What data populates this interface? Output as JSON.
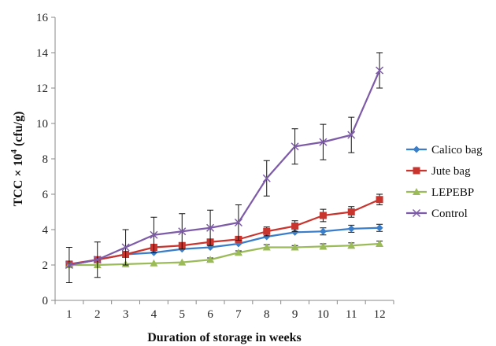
{
  "chart_data": {
    "type": "line",
    "title": "",
    "xlabel": "Duration of storage in weeks",
    "ylabel_main": "TCC × 10",
    "ylabel_exp": "4",
    "ylabel_unit": " (cfu/g)",
    "x": [
      1,
      2,
      3,
      4,
      5,
      6,
      7,
      8,
      9,
      10,
      11,
      12
    ],
    "xlim": [
      0.5,
      12.5
    ],
    "ylim": [
      0,
      16
    ],
    "yticks": [
      0,
      2,
      4,
      6,
      8,
      10,
      12,
      14,
      16
    ],
    "grid": false,
    "legend": "right",
    "series": [
      {
        "name": "Calico bag",
        "color": "#3a7dc9",
        "marker": "diamond",
        "values": [
          2.0,
          2.3,
          2.6,
          2.7,
          2.9,
          3.0,
          3.2,
          3.6,
          3.85,
          3.9,
          4.05,
          4.1
        ],
        "errors": [
          0,
          0,
          0,
          0,
          0,
          0,
          0,
          0,
          0,
          0.2,
          0.2,
          0.2
        ]
      },
      {
        "name": "Jute bag",
        "color": "#c8352f",
        "marker": "square",
        "values": [
          2.05,
          2.3,
          2.6,
          3.0,
          3.1,
          3.3,
          3.45,
          3.9,
          4.2,
          4.8,
          5.0,
          5.7
        ],
        "errors": [
          0,
          0,
          0,
          0,
          0,
          0,
          0,
          0.25,
          0.3,
          0.35,
          0.3,
          0.3
        ]
      },
      {
        "name": "LEPEBP",
        "color": "#9bbb59",
        "marker": "triangle",
        "values": [
          2.0,
          2.0,
          2.05,
          2.1,
          2.15,
          2.3,
          2.7,
          3.0,
          3.0,
          3.05,
          3.1,
          3.2
        ],
        "errors": [
          0,
          0,
          0,
          0,
          0,
          0.1,
          0.1,
          0.15,
          0.1,
          0.15,
          0.15,
          0.15
        ]
      },
      {
        "name": "Control",
        "color": "#7e5ba8",
        "marker": "x",
        "values": [
          2.0,
          2.3,
          3.0,
          3.7,
          3.9,
          4.1,
          4.4,
          6.9,
          8.7,
          8.95,
          9.35,
          13.0
        ],
        "errors": [
          1.0,
          1.0,
          1.0,
          1.0,
          1.0,
          1.0,
          1.0,
          1.0,
          1.0,
          1.0,
          1.0,
          1.0
        ]
      }
    ]
  }
}
